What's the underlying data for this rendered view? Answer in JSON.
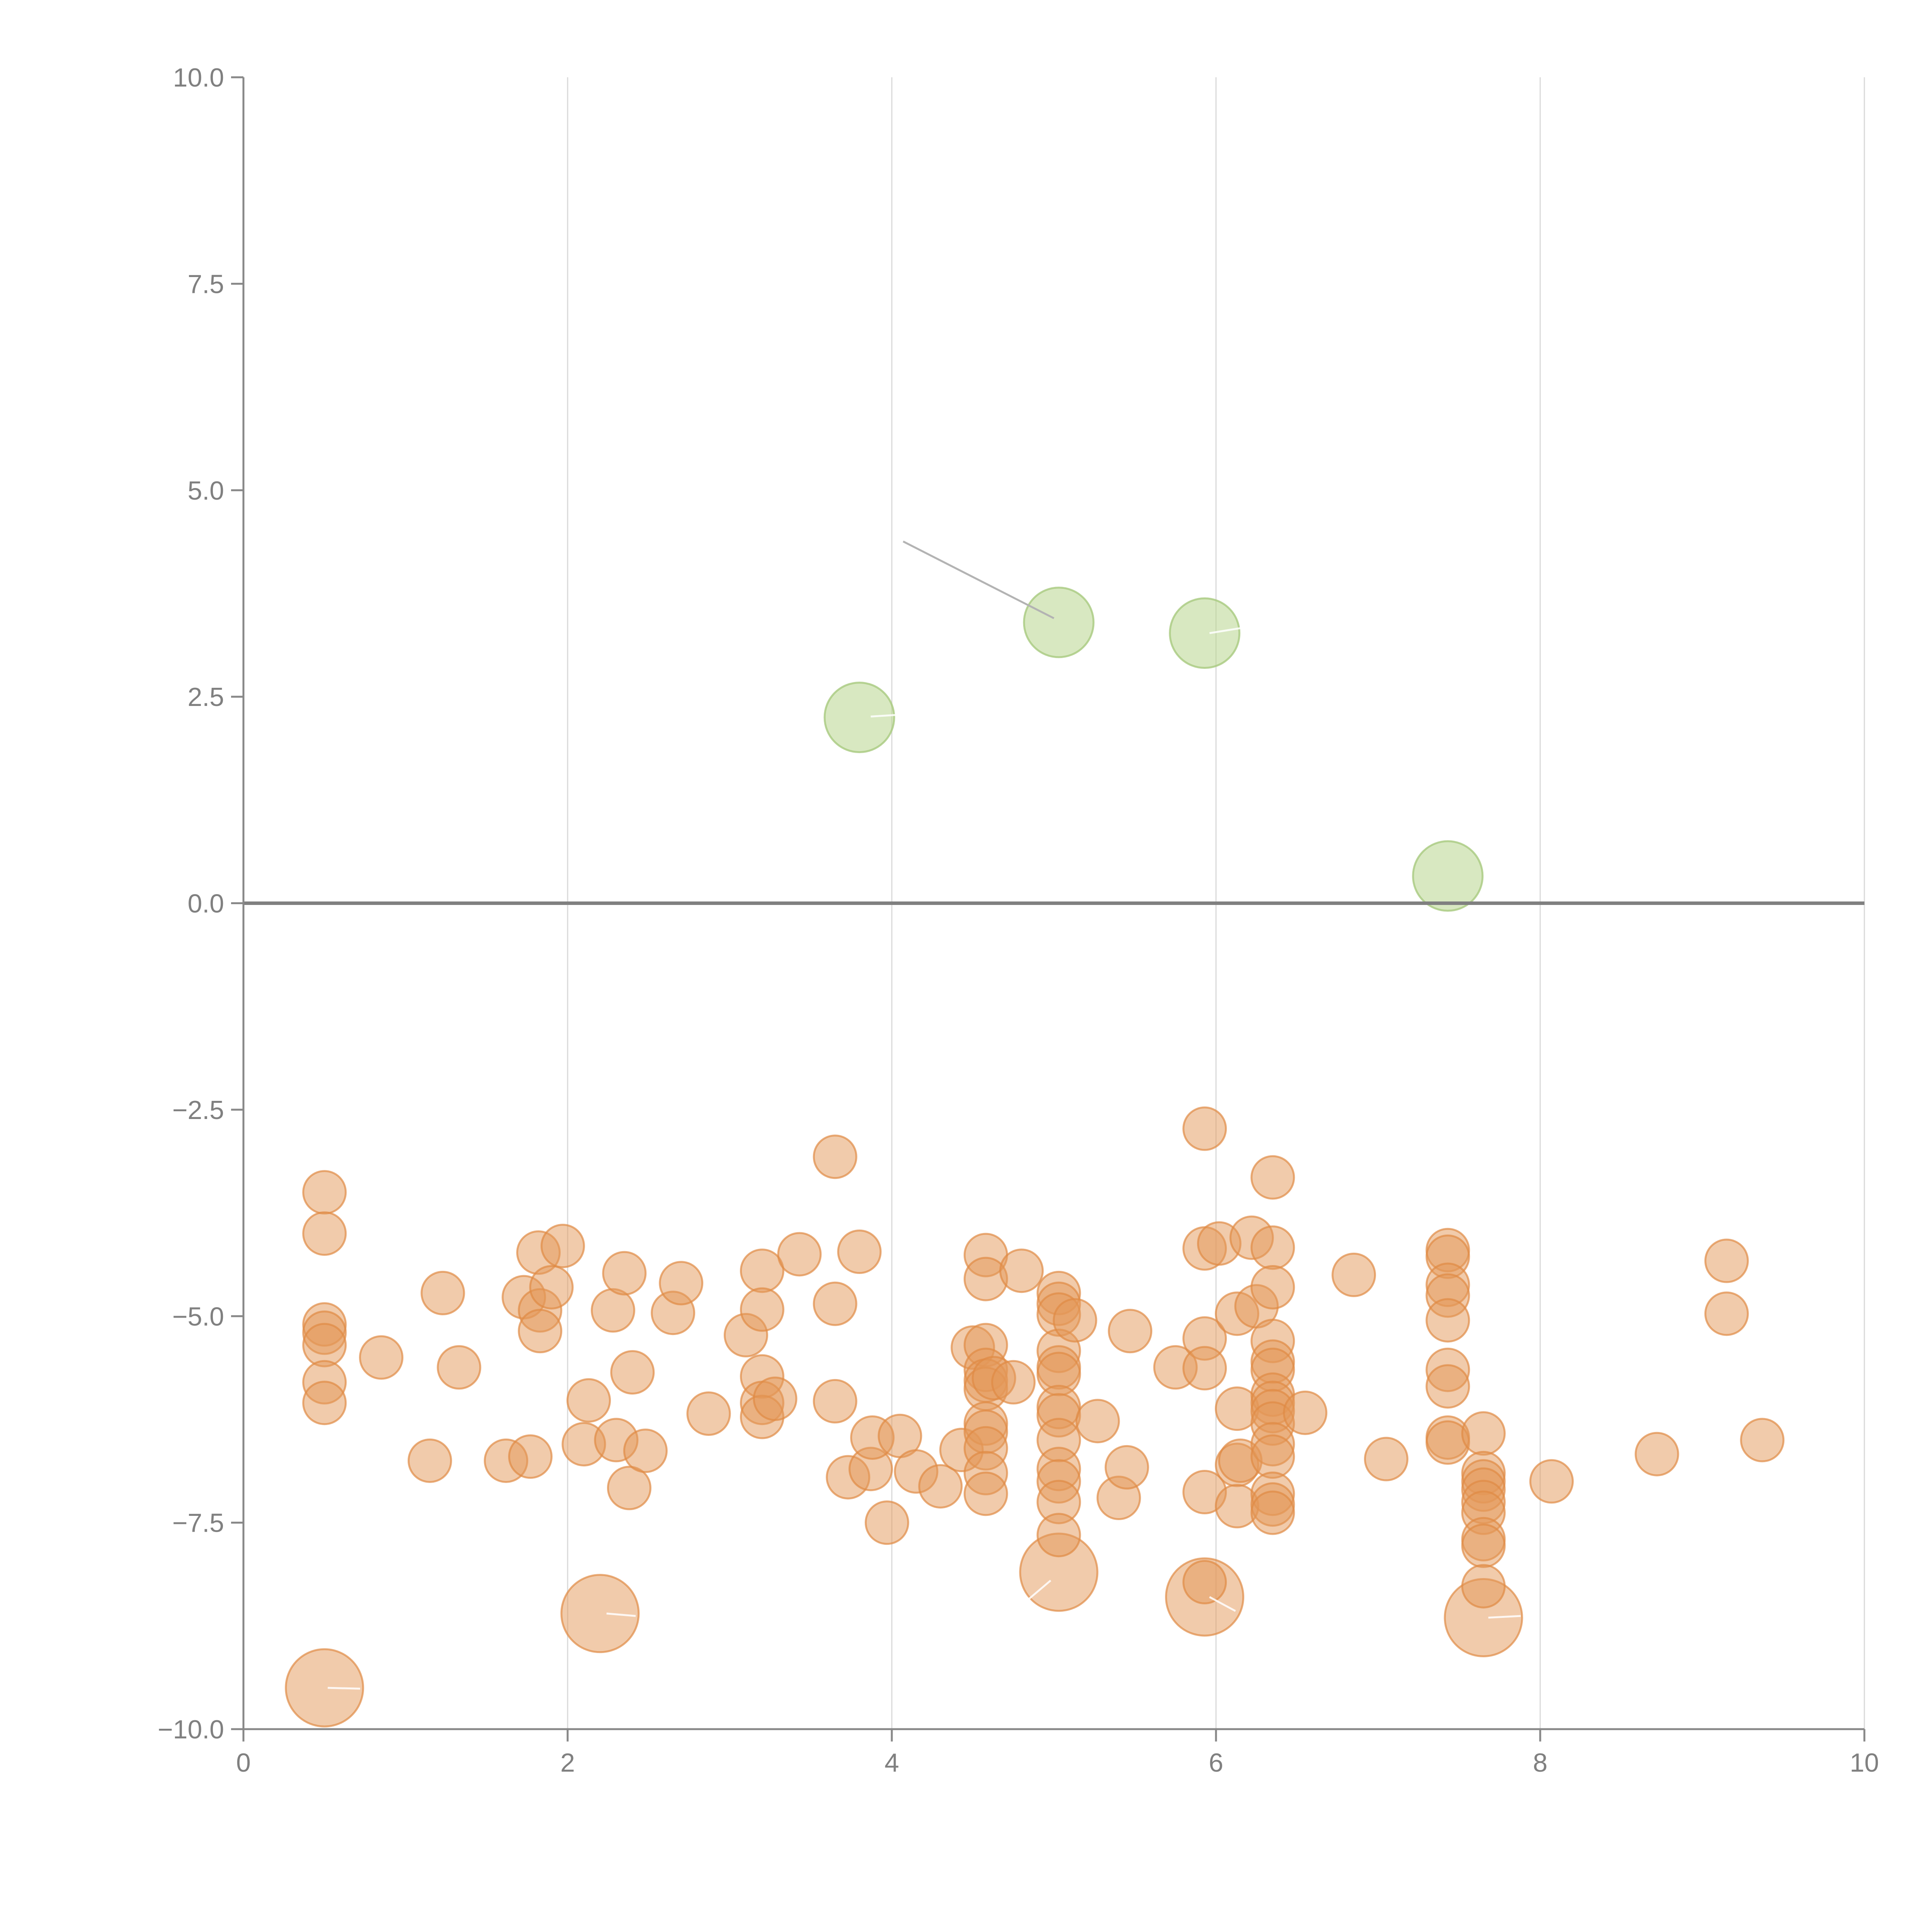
{
  "chart_data": {
    "type": "scatter",
    "title": "",
    "xlabel": "",
    "ylabel": "",
    "xlim": [
      0,
      10
    ],
    "ylim": [
      -10,
      10
    ],
    "grid": {
      "vertical": true,
      "horizontal": false
    },
    "reference_line_y": 0,
    "x_ticks": [
      0,
      2,
      4,
      6,
      8,
      10
    ],
    "x_tick_labels": [
      "0",
      "2",
      "4",
      "6",
      "8",
      "10"
    ],
    "y_ticks": [
      10,
      7.5,
      5,
      2.5,
      0,
      -2.5,
      -5,
      -7.5,
      -10
    ],
    "y_tick_labels": [
      "10.0",
      "7.5",
      "5.0",
      "2.5",
      "0.0",
      "−2.5",
      "−5.0",
      "−7.5",
      "−10.0"
    ],
    "colors": {
      "positive": "#b8d58e",
      "negative": "#e39858",
      "axis": "#888888",
      "grid": "#d9d9d9"
    },
    "series": [
      {
        "name": "positive",
        "points": [
          {
            "x": 3.8,
            "y": 2.25,
            "size": "large"
          },
          {
            "x": 5.03,
            "y": 3.4,
            "size": "large"
          },
          {
            "x": 5.93,
            "y": 3.27,
            "size": "large"
          },
          {
            "x": 7.43,
            "y": 0.33,
            "size": "large"
          }
        ]
      },
      {
        "name": "negative",
        "points": [
          {
            "x": 0.5,
            "y": -9.5,
            "size": "xlarge"
          },
          {
            "x": 2.2,
            "y": -8.6,
            "size": "xlarge"
          },
          {
            "x": 5.03,
            "y": -8.1,
            "size": "xlarge"
          },
          {
            "x": 5.93,
            "y": -8.4,
            "size": "xlarge"
          },
          {
            "x": 7.65,
            "y": -8.65,
            "size": "xlarge"
          },
          {
            "x": 0.5,
            "y": -3.5
          },
          {
            "x": 0.5,
            "y": -4.0
          },
          {
            "x": 0.5,
            "y": -5.1
          },
          {
            "x": 0.5,
            "y": -5.2
          },
          {
            "x": 0.5,
            "y": -5.35
          },
          {
            "x": 0.5,
            "y": -5.8
          },
          {
            "x": 0.5,
            "y": -6.05
          },
          {
            "x": 0.85,
            "y": -5.5
          },
          {
            "x": 1.15,
            "y": -6.75
          },
          {
            "x": 1.23,
            "y": -4.72
          },
          {
            "x": 1.33,
            "y": -5.62
          },
          {
            "x": 1.62,
            "y": -6.75
          },
          {
            "x": 1.73,
            "y": -4.77
          },
          {
            "x": 1.77,
            "y": -6.7
          },
          {
            "x": 1.82,
            "y": -4.23
          },
          {
            "x": 1.83,
            "y": -4.93
          },
          {
            "x": 1.83,
            "y": -5.18
          },
          {
            "x": 1.9,
            "y": -4.65
          },
          {
            "x": 1.97,
            "y": -4.15
          },
          {
            "x": 2.1,
            "y": -6.55
          },
          {
            "x": 2.13,
            "y": -6.02
          },
          {
            "x": 2.28,
            "y": -4.93
          },
          {
            "x": 2.3,
            "y": -6.5
          },
          {
            "x": 2.35,
            "y": -4.48
          },
          {
            "x": 2.38,
            "y": -7.08
          },
          {
            "x": 2.4,
            "y": -5.68
          },
          {
            "x": 2.48,
            "y": -6.63
          },
          {
            "x": 2.65,
            "y": -4.96
          },
          {
            "x": 2.7,
            "y": -4.6
          },
          {
            "x": 2.87,
            "y": -6.18
          },
          {
            "x": 3.1,
            "y": -5.23
          },
          {
            "x": 3.2,
            "y": -4.45
          },
          {
            "x": 3.2,
            "y": -4.92
          },
          {
            "x": 3.2,
            "y": -5.73
          },
          {
            "x": 3.2,
            "y": -6.05
          },
          {
            "x": 3.2,
            "y": -6.22
          },
          {
            "x": 3.28,
            "y": -6.0
          },
          {
            "x": 3.43,
            "y": -4.25
          },
          {
            "x": 3.65,
            "y": -3.07
          },
          {
            "x": 3.65,
            "y": -4.85
          },
          {
            "x": 3.65,
            "y": -6.03
          },
          {
            "x": 3.73,
            "y": -6.95
          },
          {
            "x": 3.8,
            "y": -4.22
          },
          {
            "x": 3.87,
            "y": -6.85
          },
          {
            "x": 3.88,
            "y": -6.47
          },
          {
            "x": 3.97,
            "y": -7.5
          },
          {
            "x": 4.05,
            "y": -6.45
          },
          {
            "x": 4.15,
            "y": -6.88
          },
          {
            "x": 4.3,
            "y": -7.06
          },
          {
            "x": 4.43,
            "y": -6.62
          },
          {
            "x": 4.5,
            "y": -5.38
          },
          {
            "x": 4.58,
            "y": -4.26
          },
          {
            "x": 4.58,
            "y": -4.55
          },
          {
            "x": 4.58,
            "y": -5.35
          },
          {
            "x": 4.58,
            "y": -5.65
          },
          {
            "x": 4.58,
            "y": -5.78
          },
          {
            "x": 4.58,
            "y": -5.88
          },
          {
            "x": 4.58,
            "y": -6.3
          },
          {
            "x": 4.58,
            "y": -6.4
          },
          {
            "x": 4.58,
            "y": -6.6
          },
          {
            "x": 4.58,
            "y": -6.9
          },
          {
            "x": 4.58,
            "y": -7.15
          },
          {
            "x": 4.63,
            "y": -5.75
          },
          {
            "x": 4.75,
            "y": -5.8
          },
          {
            "x": 4.8,
            "y": -4.45
          },
          {
            "x": 5.03,
            "y": -4.72
          },
          {
            "x": 5.03,
            "y": -4.85
          },
          {
            "x": 5.03,
            "y": -4.98
          },
          {
            "x": 5.03,
            "y": -5.42
          },
          {
            "x": 5.03,
            "y": -5.62
          },
          {
            "x": 5.03,
            "y": -5.7
          },
          {
            "x": 5.03,
            "y": -6.1
          },
          {
            "x": 5.03,
            "y": -6.2
          },
          {
            "x": 5.03,
            "y": -6.5
          },
          {
            "x": 5.03,
            "y": -6.85
          },
          {
            "x": 5.03,
            "y": -7.0
          },
          {
            "x": 5.03,
            "y": -7.25
          },
          {
            "x": 5.03,
            "y": -7.65
          },
          {
            "x": 5.13,
            "y": -5.05
          },
          {
            "x": 5.27,
            "y": -6.27
          },
          {
            "x": 5.4,
            "y": -7.2
          },
          {
            "x": 5.45,
            "y": -6.83
          },
          {
            "x": 5.47,
            "y": -5.18
          },
          {
            "x": 5.75,
            "y": -5.62
          },
          {
            "x": 5.93,
            "y": -2.73
          },
          {
            "x": 5.93,
            "y": -4.18
          },
          {
            "x": 5.93,
            "y": -5.27
          },
          {
            "x": 5.93,
            "y": -5.63
          },
          {
            "x": 5.93,
            "y": -7.13
          },
          {
            "x": 5.93,
            "y": -8.22
          },
          {
            "x": 6.02,
            "y": -4.12
          },
          {
            "x": 6.13,
            "y": -4.97
          },
          {
            "x": 6.13,
            "y": -6.12
          },
          {
            "x": 6.13,
            "y": -6.8
          },
          {
            "x": 6.15,
            "y": -6.75
          },
          {
            "x": 6.13,
            "y": -7.3
          },
          {
            "x": 6.22,
            "y": -4.05
          },
          {
            "x": 6.25,
            "y": -4.88
          },
          {
            "x": 6.35,
            "y": -3.32
          },
          {
            "x": 6.35,
            "y": -4.17
          },
          {
            "x": 6.35,
            "y": -4.65
          },
          {
            "x": 6.35,
            "y": -5.3
          },
          {
            "x": 6.35,
            "y": -5.55
          },
          {
            "x": 6.35,
            "y": -5.65
          },
          {
            "x": 6.35,
            "y": -5.95
          },
          {
            "x": 6.35,
            "y": -6.05
          },
          {
            "x": 6.35,
            "y": -6.15
          },
          {
            "x": 6.35,
            "y": -6.3
          },
          {
            "x": 6.35,
            "y": -6.55
          },
          {
            "x": 6.35,
            "y": -6.7
          },
          {
            "x": 6.35,
            "y": -7.15
          },
          {
            "x": 6.35,
            "y": -7.28
          },
          {
            "x": 6.35,
            "y": -7.38
          },
          {
            "x": 6.55,
            "y": -6.17
          },
          {
            "x": 6.85,
            "y": -4.5
          },
          {
            "x": 7.05,
            "y": -6.73
          },
          {
            "x": 7.43,
            "y": -4.2
          },
          {
            "x": 7.43,
            "y": -4.28
          },
          {
            "x": 7.43,
            "y": -4.62
          },
          {
            "x": 7.43,
            "y": -4.75
          },
          {
            "x": 7.43,
            "y": -5.05
          },
          {
            "x": 7.43,
            "y": -5.65
          },
          {
            "x": 7.43,
            "y": -5.85
          },
          {
            "x": 7.43,
            "y": -6.47
          },
          {
            "x": 7.43,
            "y": -6.53
          },
          {
            "x": 7.65,
            "y": -6.42
          },
          {
            "x": 7.65,
            "y": -6.9
          },
          {
            "x": 7.65,
            "y": -7.0
          },
          {
            "x": 7.65,
            "y": -7.1
          },
          {
            "x": 7.65,
            "y": -7.25
          },
          {
            "x": 7.65,
            "y": -7.38
          },
          {
            "x": 7.65,
            "y": -7.7
          },
          {
            "x": 7.65,
            "y": -7.78
          },
          {
            "x": 7.65,
            "y": -8.27
          },
          {
            "x": 8.07,
            "y": -7.0
          },
          {
            "x": 8.72,
            "y": -6.67
          },
          {
            "x": 9.15,
            "y": -4.33
          },
          {
            "x": 9.15,
            "y": -4.97
          },
          {
            "x": 9.37,
            "y": -6.5
          }
        ]
      }
    ],
    "pointer_lines": [
      {
        "from": [
          3.87,
          2.26
        ],
        "to": [
          4.03,
          2.28
        ],
        "style": "light"
      },
      {
        "from": [
          4.07,
          4.38
        ],
        "to": [
          5.0,
          3.45
        ],
        "style": "dark"
      },
      {
        "from": [
          5.96,
          3.27
        ],
        "to": [
          6.15,
          3.33
        ],
        "style": "light"
      },
      {
        "from": [
          0.52,
          -9.5
        ],
        "to": [
          0.72,
          -9.51
        ],
        "style": "light"
      },
      {
        "from": [
          2.24,
          -8.6
        ],
        "to": [
          2.42,
          -8.63
        ],
        "style": "light"
      },
      {
        "from": [
          4.83,
          -8.45
        ],
        "to": [
          4.98,
          -8.2
        ],
        "style": "light"
      },
      {
        "from": [
          5.96,
          -8.4
        ],
        "to": [
          6.12,
          -8.57
        ],
        "style": "light"
      },
      {
        "from": [
          7.68,
          -8.65
        ],
        "to": [
          7.88,
          -8.63
        ],
        "style": "light"
      }
    ]
  }
}
